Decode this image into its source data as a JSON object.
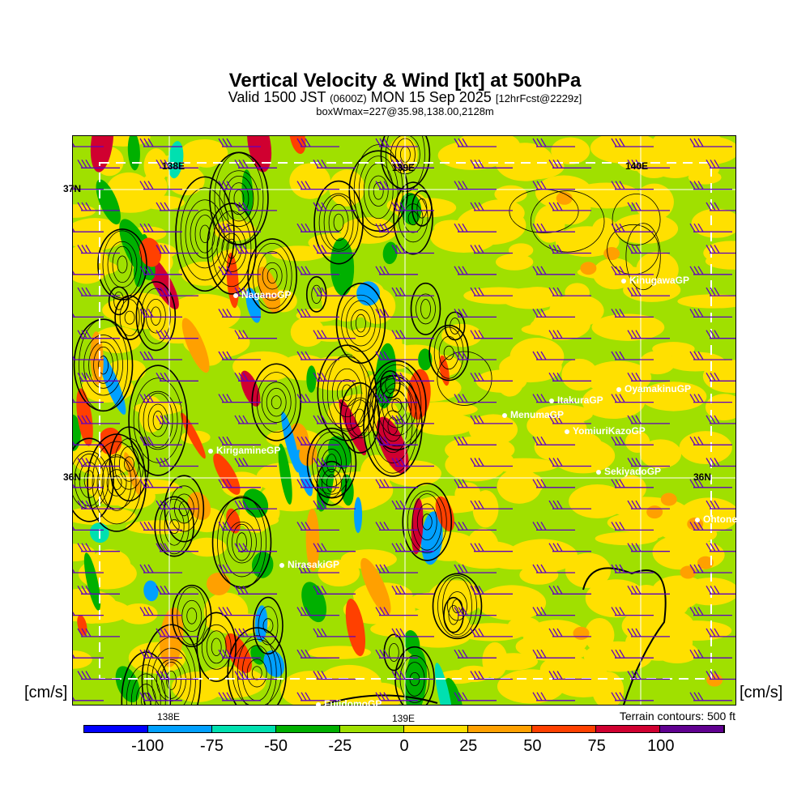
{
  "header": {
    "title": "Vertical Velocity & Wind [kt] at 500hPa",
    "valid_main": "Valid 1500 JST",
    "valid_z": "(0600Z)",
    "valid_date": "MON 15 Sep 2025",
    "forecast": "[12hrFcst@2229z]",
    "boxwmax": "boxWmax=227@35.98,138.00,2128m"
  },
  "units_left": "[cm/s]",
  "units_right": "[cm/s]",
  "terrain_note": "Terrain contours: 500 ft",
  "grid_labels": {
    "lon_138": "138E",
    "lon_139": "139E",
    "lon_140": "140E",
    "lat_37": "37N",
    "lat_36": "36N"
  },
  "axis_labels": {
    "lon_138": "138E",
    "lon_139": "139E"
  },
  "stations": [
    {
      "name": "KinugawaGP"
    },
    {
      "name": "OyamakinuGP"
    },
    {
      "name": "ItakuraGP"
    },
    {
      "name": "MenumaGP"
    },
    {
      "name": "YomiuriKazoGP"
    },
    {
      "name": "SekiyadoGP"
    },
    {
      "name": "Ohtone"
    },
    {
      "name": "NaganoGP"
    },
    {
      "name": "KirigamineGP"
    },
    {
      "name": "NirasakiGP"
    },
    {
      "name": "FujidomoGP"
    }
  ],
  "colorbar": {
    "colors": [
      "#0000ff",
      "#00a0ff",
      "#00e0b0",
      "#00b000",
      "#a0e000",
      "#ffe000",
      "#ffa000",
      "#ff4000",
      "#d00030",
      "#600090"
    ],
    "ticks": [
      "-100",
      "-75",
      "-50",
      "-25",
      "0",
      "25",
      "50",
      "75",
      "100"
    ]
  },
  "colors": {
    "barb": "#6000c0",
    "contour": "#000000",
    "grid": "#ffffff"
  }
}
